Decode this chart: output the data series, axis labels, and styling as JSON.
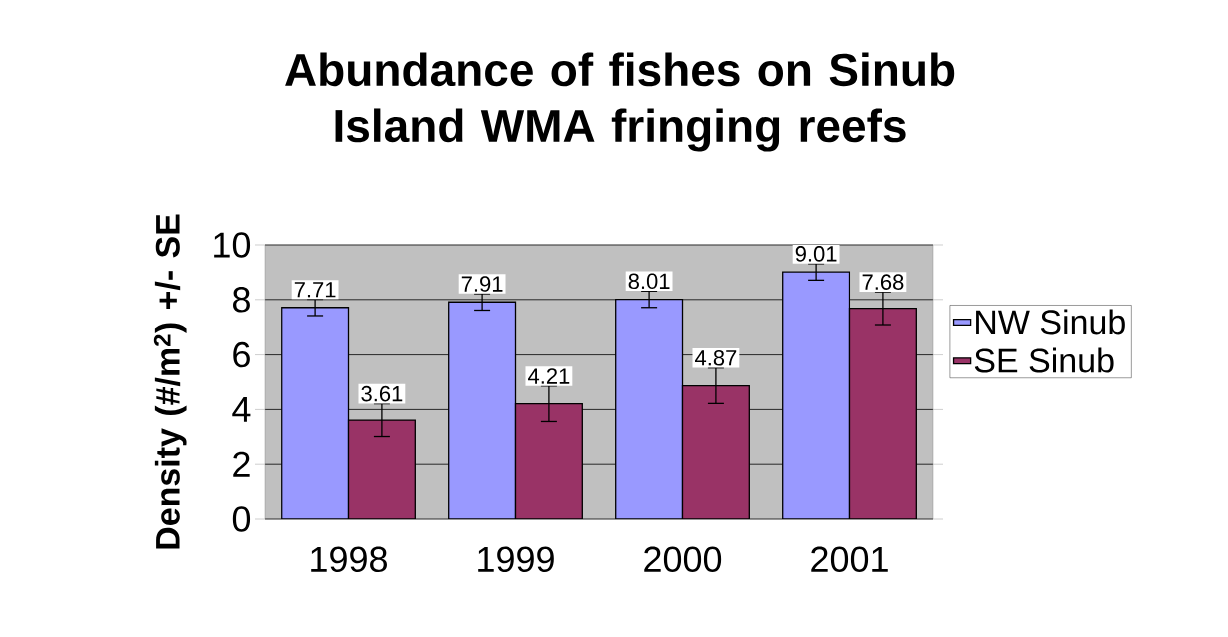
{
  "chart_data": {
    "type": "bar",
    "title": "Abundance of fishes on Sinub Island WMA fringing reefs",
    "ylabel": "Density (#/m$^{2}$) +/- SE",
    "categories": [
      "1998",
      "1999",
      "2000",
      "2001"
    ],
    "series": [
      {
        "name": "NW Sinub",
        "color": "#9999ff",
        "values": [
          7.71,
          7.91,
          8.01,
          9.01
        ],
        "errors": [
          0.3,
          0.3,
          0.3,
          0.3
        ]
      },
      {
        "name": "SE Sinub",
        "color": "#993366",
        "values": [
          3.61,
          4.21,
          4.87,
          7.68
        ],
        "errors": [
          0.6,
          0.65,
          0.65,
          0.6
        ]
      }
    ],
    "ylim": [
      0,
      10
    ],
    "yticks": [
      0,
      2,
      4,
      6,
      8,
      10
    ],
    "grid": "y",
    "legend": "right",
    "data_labels": true
  }
}
